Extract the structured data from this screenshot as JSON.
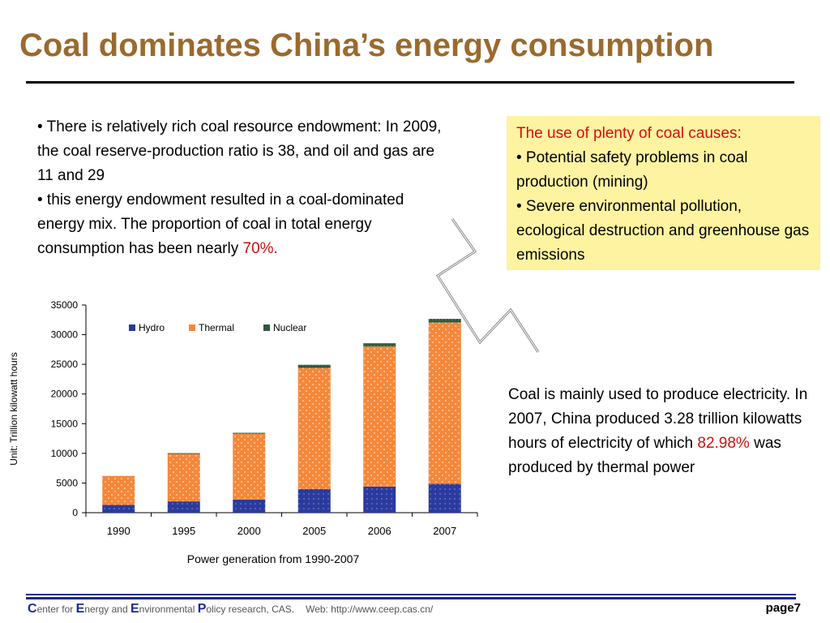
{
  "slide": {
    "title": "Coal dominates China’s energy consumption",
    "left_text": {
      "bullet1": "• There is relatively rich coal resource endowment: In 2009, the coal reserve-production ratio is 38, and oil and gas are 11 and 29",
      "bullet2_lead": "• this energy endowment resulted in a coal-dominated energy mix. The proportion of coal in total energy consumption has been nearly ",
      "bullet2_highlight": "70%."
    },
    "callout": {
      "heading": "The use of plenty of coal causes:",
      "item1": "• Potential safety problems in coal production (mining)",
      "item2": "• Severe environmental pollution, ecological destruction and greenhouse gas emissions"
    },
    "right_text": {
      "lead": "Coal is mainly used to produce electricity. In 2007, China produced 3.28 trillion kilowatts hours of electricity of which ",
      "highlight": "82.98%",
      "tail": " was produced by thermal power"
    },
    "colors": {
      "title": "#9a6a2e",
      "highlight": "#d01010",
      "callout_bg": "#fdf3a0",
      "footer_rule": "#1a2a8a"
    }
  },
  "chart_data": {
    "type": "bar",
    "stacked": true,
    "categories": [
      "1990",
      "1995",
      "2000",
      "2005",
      "2006",
      "2007"
    ],
    "series": [
      {
        "name": "Hydro",
        "color": "#2b3a9e",
        "values": [
          1300,
          1900,
          2200,
          4000,
          4400,
          4850
        ]
      },
      {
        "name": "Thermal",
        "color": "#f5883a",
        "values": [
          4900,
          8000,
          11100,
          20400,
          23600,
          27200
        ]
      },
      {
        "name": "Nuclear",
        "color": "#2d5a3a",
        "values": [
          0,
          130,
          170,
          530,
          550,
          620
        ]
      }
    ],
    "ylim": [
      0,
      35000
    ],
    "yticks": [
      0,
      5000,
      10000,
      15000,
      20000,
      25000,
      30000,
      35000
    ],
    "ylabel": "Unit: Trillion kilowatt hours",
    "xlabel": "Power generation from 1990-2007",
    "legend_position": "top-left",
    "grid": false
  },
  "footer": {
    "c": "C",
    "c_rest": "enter for ",
    "e1": "E",
    "e1_rest": "nergy and ",
    "e2": "E",
    "e2_rest": "nvironmental ",
    "p": "P",
    "p_rest": "olicy research, CAS.",
    "web": "Web: http://www.ceep.cas.cn/",
    "page": "page7"
  }
}
